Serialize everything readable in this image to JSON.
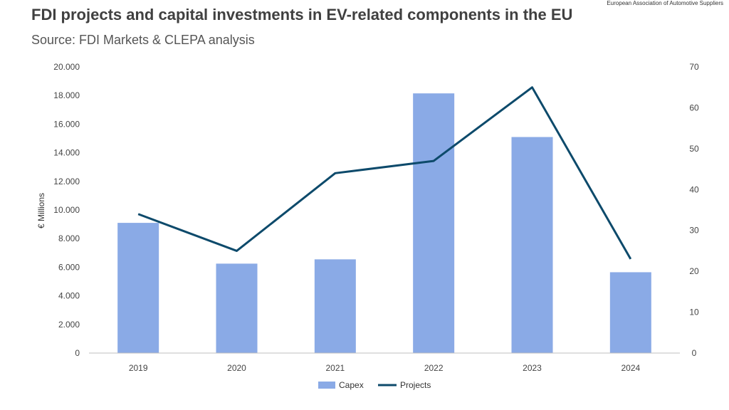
{
  "header": {
    "title": "FDI projects and capital investments in EV-related components in the EU",
    "subtitle": "Source: FDI Markets & CLEPA analysis",
    "org": "European Association of Automotive Suppliers"
  },
  "chart_data": {
    "type": "bar",
    "categories": [
      "2019",
      "2020",
      "2021",
      "2022",
      "2023",
      "2024"
    ],
    "series": [
      {
        "name": "Capex",
        "type": "bar",
        "axis": "left",
        "color": "#8aaae6",
        "values": [
          9100,
          6250,
          6550,
          18150,
          15100,
          5650
        ]
      },
      {
        "name": "Projects",
        "type": "line",
        "axis": "right",
        "color": "#0d4a6b",
        "values": [
          34,
          25,
          44,
          47,
          65,
          23
        ]
      }
    ],
    "ylabel": "€ Millions",
    "ylim": [
      0,
      20000
    ],
    "y2lim": [
      0,
      70
    ],
    "y_ticks": [
      "0",
      "2.000",
      "4.000",
      "6.000",
      "8.000",
      "10.000",
      "12.000",
      "14.000",
      "16.000",
      "18.000",
      "20.000"
    ],
    "y2_ticks": [
      "0",
      "10",
      "20",
      "30",
      "40",
      "50",
      "60",
      "70"
    ],
    "grid": false,
    "legend": "bottom"
  }
}
